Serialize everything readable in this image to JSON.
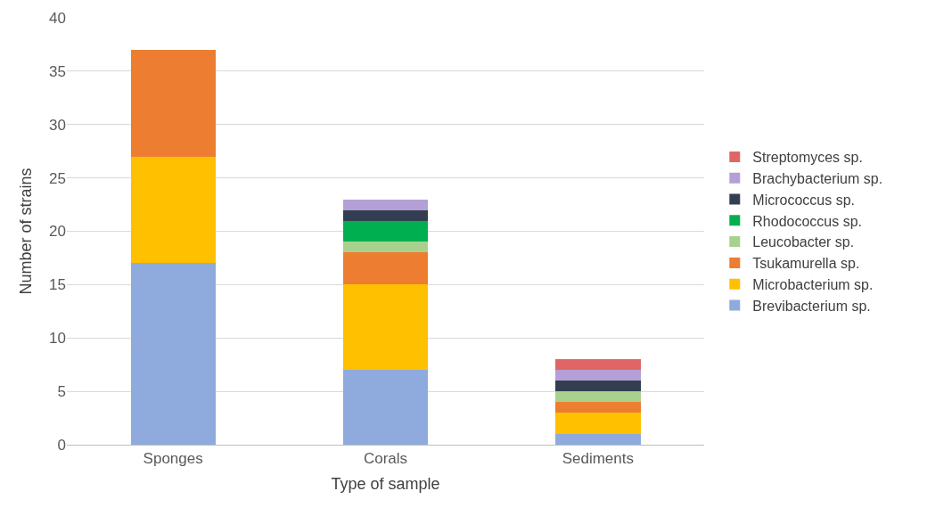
{
  "chart_data": {
    "type": "bar",
    "stacked": true,
    "xlabel": "Type of sample",
    "ylabel": "Number of strains",
    "categories": [
      "Sponges",
      "Corals",
      "Sediments"
    ],
    "series": [
      {
        "name": "Brevibacterium sp.",
        "color": "#8faadc",
        "values": [
          17,
          7,
          1
        ]
      },
      {
        "name": "Microbacterium sp.",
        "color": "#ffc000",
        "values": [
          10,
          8,
          2
        ]
      },
      {
        "name": "Tsukamurella sp.",
        "color": "#ed7d31",
        "values": [
          10,
          3,
          1
        ]
      },
      {
        "name": "Leucobacter sp.",
        "color": "#a9d18e",
        "values": [
          0,
          1,
          1
        ]
      },
      {
        "name": "Rhodococcus sp.",
        "color": "#00b050",
        "values": [
          0,
          2,
          0
        ]
      },
      {
        "name": "Micrococcus sp.",
        "color": "#333f50",
        "values": [
          0,
          1,
          1
        ]
      },
      {
        "name": "Brachybacterium sp.",
        "color": "#b4a0d6",
        "values": [
          0,
          1,
          1
        ]
      },
      {
        "name": "Streptomyces sp.",
        "color": "#e06666",
        "values": [
          0,
          0,
          1
        ]
      }
    ],
    "ylim": [
      0,
      40
    ],
    "yticks": [
      0,
      5,
      10,
      15,
      20,
      25,
      30,
      35,
      40
    ],
    "grid": "y",
    "legend": "right"
  }
}
